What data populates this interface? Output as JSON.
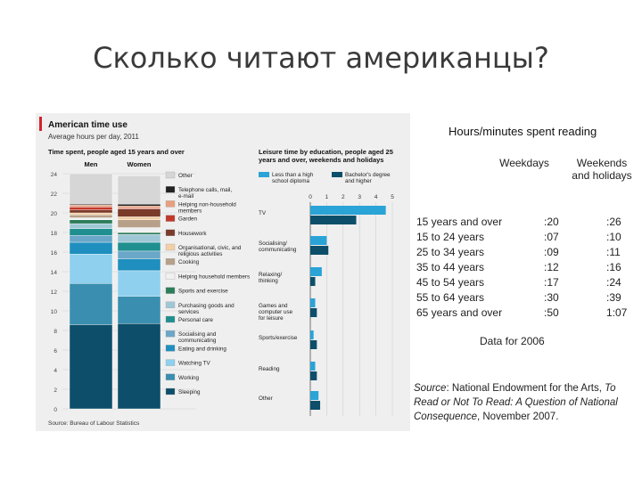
{
  "slide_title": "Сколько читают американцы?",
  "figure": {
    "title": "American time use",
    "subtitle": "Average hours per day, 2011",
    "left_panel_title": "Time spent, people aged 15 years and over",
    "right_panel_title": "Leisure time by education, people aged 25 years and over, weekends and holidays",
    "footer": "Source: Bureau of Labour Statistics",
    "colors": {
      "Other": "#d6d6d6",
      "Telephone calls, mail, e-mail": "#222222",
      "Helping non-household members": "#e8a080",
      "Garden": "#c0392b",
      "Housework": "#7a3b2b",
      "Organisational, civic, and religious activities": "#f2cfa6",
      "Cooking": "#b7a08a",
      "Helping household members": "#f0f0f0",
      "Sports and exercise": "#2d7d5a",
      "Purchasing goods and services": "#9fc7d6",
      "Personal care": "#1f8f8f",
      "Socialising and communicating": "#6aa7c8",
      "Eating and drinking": "#1e8fbf",
      "Watching TV": "#8ed0ee",
      "Working": "#3a8fb0",
      "Sleeping": "#0d4f6a",
      "lt_hs": "#2aa3d6",
      "ba": "#0d4f6a"
    }
  },
  "chart_data": [
    {
      "type": "bar",
      "stacked": true,
      "title": "Time spent, people aged 15 years and over",
      "categories": [
        "Men",
        "Women"
      ],
      "ylim": [
        0,
        24
      ],
      "yticks": [
        0,
        2,
        4,
        6,
        8,
        10,
        12,
        14,
        16,
        18,
        20,
        22,
        24
      ],
      "series": [
        {
          "name": "Sleeping",
          "values": [
            8.6,
            8.7
          ]
        },
        {
          "name": "Working",
          "values": [
            4.2,
            2.8
          ]
        },
        {
          "name": "Watching TV",
          "values": [
            3.0,
            2.6
          ]
        },
        {
          "name": "Eating and drinking",
          "values": [
            1.2,
            1.2
          ]
        },
        {
          "name": "Socialising and communicating",
          "values": [
            0.7,
            0.8
          ]
        },
        {
          "name": "Personal care",
          "values": [
            0.7,
            0.9
          ]
        },
        {
          "name": "Purchasing goods and services",
          "values": [
            0.5,
            0.8
          ]
        },
        {
          "name": "Sports and exercise",
          "values": [
            0.4,
            0.2
          ]
        },
        {
          "name": "Helping household members",
          "values": [
            0.2,
            0.5
          ]
        },
        {
          "name": "Cooking",
          "values": [
            0.3,
            0.8
          ]
        },
        {
          "name": "Organisational, civic, and religious activities",
          "values": [
            0.2,
            0.3
          ]
        },
        {
          "name": "Housework",
          "values": [
            0.3,
            0.8
          ]
        },
        {
          "name": "Garden",
          "values": [
            0.3,
            0.1
          ]
        },
        {
          "name": "Helping non-household members",
          "values": [
            0.2,
            0.2
          ]
        },
        {
          "name": "Telephone calls, mail, e-mail",
          "values": [
            0.1,
            0.2
          ]
        },
        {
          "name": "Other",
          "values": [
            3.1,
            2.9
          ]
        }
      ],
      "legend": [
        "Other",
        "Telephone calls, mail, e-mail",
        "Helping non-household members",
        "Garden",
        "Housework",
        "Organisational, civic, and religious activities",
        "Cooking",
        "Helping household members",
        "Sports and exercise",
        "Purchasing goods and services",
        "Personal care",
        "Socialising and communicating",
        "Eating and drinking",
        "Watching TV",
        "Working",
        "Sleeping"
      ]
    },
    {
      "type": "bar",
      "orientation": "horizontal",
      "title": "Leisure time by education, people aged 25 years and over, weekends and holidays",
      "categories": [
        "TV",
        "Socialising/ communicating",
        "Relaxing/ thinking",
        "Games and computer use for leisure",
        "Sports/exercise",
        "Reading",
        "Other"
      ],
      "xlim": [
        0,
        5
      ],
      "xticks": [
        0,
        1,
        2,
        3,
        4,
        5
      ],
      "series": [
        {
          "name": "Less than a high school diploma",
          "values": [
            4.6,
            1.0,
            0.7,
            0.3,
            0.2,
            0.3,
            0.5
          ]
        },
        {
          "name": "Bachelor's degree and higher",
          "values": [
            2.8,
            1.1,
            0.3,
            0.4,
            0.4,
            0.4,
            0.6
          ]
        }
      ]
    },
    {
      "type": "table",
      "title": "Hours/minutes spent reading",
      "columns": [
        "Weekdays",
        "Weekends and holidays"
      ],
      "rows": [
        {
          "label": "15 years and over",
          "weekdays": ":20",
          "weekends": ":26"
        },
        {
          "label": "15 to 24 years",
          "weekdays": ":07",
          "weekends": ":10"
        },
        {
          "label": "25 to 34 years",
          "weekdays": ":09",
          "weekends": ":11"
        },
        {
          "label": "35 to 44 years",
          "weekdays": ":12",
          "weekends": ":16"
        },
        {
          "label": "45 to 54 years",
          "weekdays": ":17",
          "weekends": ":24"
        },
        {
          "label": "55 to 64 years",
          "weekdays": ":30",
          "weekends": ":39"
        },
        {
          "label": "65 years and over",
          "weekdays": ":50",
          "weekends": "1:07"
        }
      ]
    }
  ],
  "reading_table": {
    "title": "Hours/minutes spent reading",
    "weekdays": "Weekdays",
    "weekends_line1": "Weekends",
    "weekends_line2": "and holidays",
    "note": "Data for 2006",
    "source_label": "Source",
    "source_text_1": ": National Endowment for the Arts, ",
    "source_title": "To Read or Not To Read: A Question of National Consequence",
    "source_text_2": ", November 2007."
  }
}
